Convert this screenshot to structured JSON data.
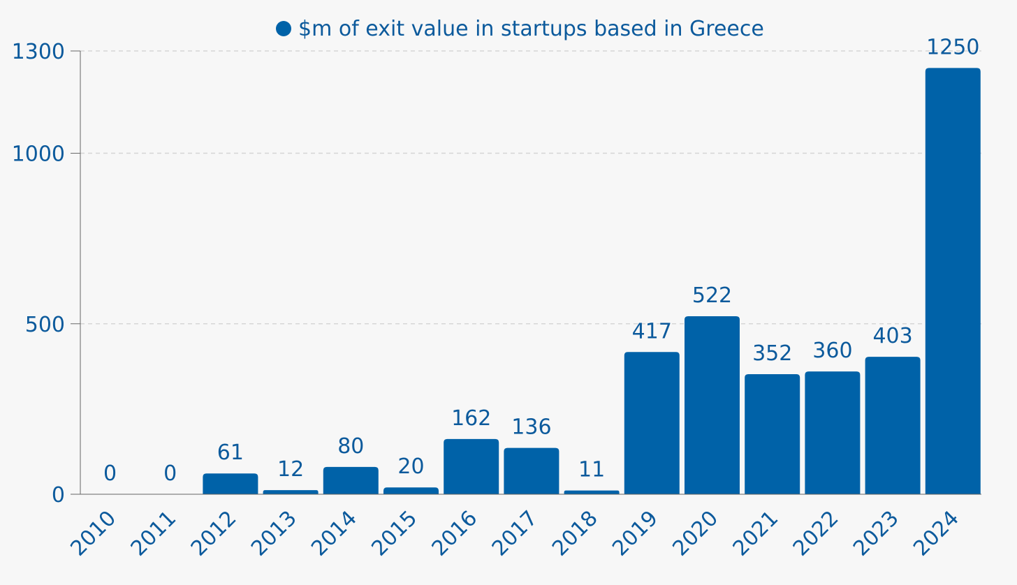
{
  "chart_data": {
    "type": "bar",
    "categories": [
      "2010",
      "2011",
      "2012",
      "2013",
      "2014",
      "2015",
      "2016",
      "2017",
      "2018",
      "2019",
      "2020",
      "2021",
      "2022",
      "2023",
      "2024"
    ],
    "series": [
      {
        "name": "$m of exit value in startups based in Greece",
        "values": [
          0,
          0,
          61,
          12,
          80,
          20,
          162,
          136,
          11,
          417,
          522,
          352,
          360,
          403,
          1250
        ]
      }
    ],
    "data_labels": [
      "0",
      "0",
      "61",
      "12",
      "80",
      "20",
      "162",
      "136",
      "11",
      "417",
      "522",
      "352",
      "360",
      "403",
      "1250"
    ],
    "y_ticks": [
      0,
      500,
      1000,
      1300
    ],
    "y_tick_labels": [
      "0",
      "500",
      "1000",
      "1300"
    ],
    "ylim": [
      0,
      1300
    ],
    "grid": true,
    "legend": "top-center",
    "colors": {
      "bar": "#0062a8",
      "text": "#0c5a9c",
      "grid": "#d6d6d6",
      "axis": "#666666",
      "background": "#f7f7f7"
    }
  }
}
